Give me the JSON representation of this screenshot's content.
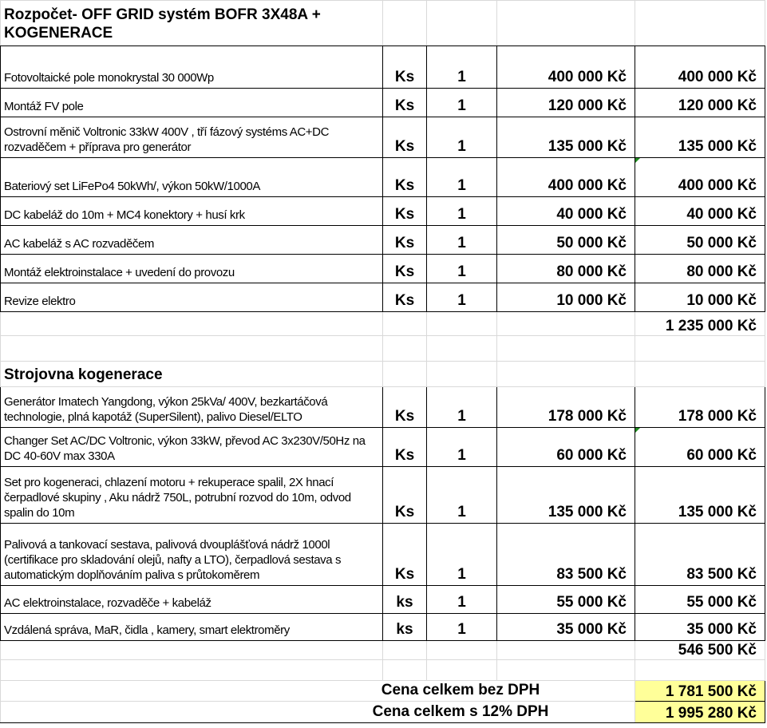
{
  "title": "Rozpočet- OFF GRID systém    BOFR 3X48A + KOGENERACE",
  "section1": {
    "items": [
      {
        "desc": "Fotovoltaické pole monokrystal 30 000Wp",
        "unit": "Ks",
        "qty": "1",
        "price": "400 000 Kč",
        "total": "400 000 Kč"
      },
      {
        "desc": "Montáž FV pole",
        "unit": "Ks",
        "qty": "1",
        "price": "120 000 Kč",
        "total": "120 000 Kč"
      },
      {
        "desc": "Ostrovní měnič Voltronic 33kW  400V , tří fázový systéms AC+DC rozvaděčem + příprava pro generátor",
        "unit": "Ks",
        "qty": "1",
        "price": "135 000 Kč",
        "total": "135 000 Kč"
      },
      {
        "desc": "Bateriový set LiFePo4   50kWh/, výkon 50kW/1000A",
        "unit": "Ks",
        "qty": "1",
        "price": "400 000 Kč",
        "total": "400 000 Kč"
      },
      {
        "desc": "DC kabeláž do 10m + MC4 konektory + husí krk",
        "unit": "Ks",
        "qty": "1",
        "price": "40 000 Kč",
        "total": "40 000 Kč"
      },
      {
        "desc": "AC kabeláž s AC rozvaděčem",
        "unit": "Ks",
        "qty": "1",
        "price": "50 000 Kč",
        "total": "50 000 Kč"
      },
      {
        "desc": "Montáž elektroinstalace + uvedení do provozu",
        "unit": "Ks",
        "qty": "1",
        "price": "80 000 Kč",
        "total": "80 000 Kč"
      },
      {
        "desc": "Revize elektro",
        "unit": "Ks",
        "qty": "1",
        "price": "10 000 Kč",
        "total": "10 000 Kč"
      }
    ],
    "subtotal": "1 235 000 Kč"
  },
  "section2": {
    "title": "Strojovna kogenerace",
    "items": [
      {
        "desc": "Generátor Imatech Yangdong, výkon 25kVa/ 400V, bezkartáčová technologie, plná kapotáž (SuperSilent), palivo Diesel/ELTO",
        "unit": "Ks",
        "qty": "1",
        "price": "178 000 Kč",
        "total": "178 000 Kč"
      },
      {
        "desc": "Changer Set AC/DC Voltronic, výkon 33kW, převod AC 3x230V/50Hz na DC 40-60V max 330A",
        "unit": "Ks",
        "qty": "1",
        "price": "60 000 Kč",
        "total": "60 000 Kč"
      },
      {
        "desc": "Set pro kogeneraci, chlazení motoru + rekuperace spalil, 2X hnací čerpadlové skupiny , Aku nádrž 750L, potrubní rozvod do 10m, odvod spalin do 10m",
        "unit": "Ks",
        "qty": "1",
        "price": "135 000 Kč",
        "total": "135 000 Kč"
      },
      {
        "desc": "Palivová a tankovací sestava, palivová dvouplášťová nádrž 1000l (certifikace pro skladování olejů, nafty a LTO), čerpadlová sestava s automatickým doplňováním paliva s průtokoměrem",
        "unit": "Ks",
        "qty": "1",
        "price": "83 500 Kč",
        "total": "83 500 Kč"
      },
      {
        "desc": "AC elektroinstalace, rozvaděče + kabeláž",
        "unit": "ks",
        "qty": "1",
        "price": "55 000 Kč",
        "total": "55 000 Kč"
      },
      {
        "desc": "Vzdálená správa, MaR, čidla , kamery, smart elektroměry",
        "unit": "ks",
        "qty": "1",
        "price": "35 000 Kč",
        "total": "35 000 Kč"
      }
    ],
    "subtotal": "546 500 Kč"
  },
  "totals": {
    "without_vat_label": "Cena celkem bez DPH",
    "without_vat": "1 781 500 Kč",
    "with_vat_label": "Cena celkem s 12%  DPH",
    "with_vat": "1 995 280 Kč"
  },
  "colors": {
    "highlight": "#ffff99",
    "comment_marker": "#1e8a1e"
  }
}
